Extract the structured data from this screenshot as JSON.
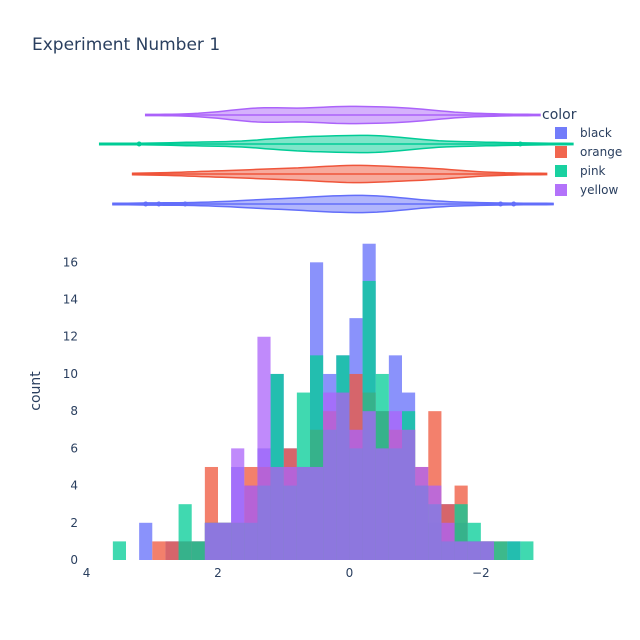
{
  "chart_data": {
    "type": "histogram",
    "title": "Experiment Number 1",
    "xlabel": "",
    "ylabel": "count",
    "x_reversed": true,
    "xlim": [
      4.1,
      -2.9
    ],
    "ylim": [
      0,
      17.2
    ],
    "x_ticks": [
      4,
      2,
      0,
      -2
    ],
    "x_tick_labels": [
      "4",
      "2",
      "0",
      "−2"
    ],
    "y_ticks": [
      0,
      2,
      4,
      6,
      8,
      10,
      12,
      14,
      16
    ],
    "bin_width": 0.2,
    "barmode": "overlay",
    "opacity": 0.75,
    "legend": {
      "title": "color",
      "position": "right"
    },
    "marginal": "violin",
    "series": [
      {
        "name": "black",
        "color": "#636efa",
        "bins": [
          [
            3.0,
            2
          ],
          [
            2.8,
            0
          ],
          [
            2.6,
            1
          ],
          [
            2.4,
            1
          ],
          [
            2.2,
            1
          ],
          [
            2.0,
            2
          ],
          [
            1.8,
            2
          ],
          [
            1.6,
            5
          ],
          [
            1.4,
            4
          ],
          [
            1.2,
            6
          ],
          [
            1.0,
            10
          ],
          [
            0.8,
            6
          ],
          [
            0.6,
            5
          ],
          [
            0.4,
            16
          ],
          [
            0.2,
            10
          ],
          [
            0.0,
            11
          ],
          [
            -0.2,
            13
          ],
          [
            -0.4,
            17
          ],
          [
            -0.6,
            8
          ],
          [
            -0.8,
            11
          ],
          [
            -1.0,
            9
          ],
          [
            -1.2,
            4
          ],
          [
            -1.4,
            2
          ],
          [
            -1.6,
            3
          ],
          [
            -1.8,
            2
          ],
          [
            -2.0,
            1
          ],
          [
            -2.2,
            1
          ],
          [
            -2.4,
            0
          ],
          [
            -2.6,
            1
          ]
        ],
        "violin_box": {
          "min": -3.1,
          "q1": -0.5,
          "median": 0.1,
          "q3": 0.7,
          "max": 3.6
        },
        "violin_outliers": [
          3.1,
          2.9,
          2.5,
          -2.3,
          -2.5
        ]
      },
      {
        "name": "orange",
        "color": "#ef553b",
        "bins": [
          [
            2.8,
            1
          ],
          [
            2.6,
            1
          ],
          [
            2.4,
            1
          ],
          [
            2.2,
            1
          ],
          [
            2.0,
            5
          ],
          [
            1.8,
            2
          ],
          [
            1.6,
            2
          ],
          [
            1.4,
            5
          ],
          [
            1.2,
            5
          ],
          [
            1.0,
            5
          ],
          [
            0.8,
            6
          ],
          [
            0.6,
            5
          ],
          [
            0.4,
            7
          ],
          [
            0.2,
            8
          ],
          [
            0.0,
            9
          ],
          [
            -0.2,
            10
          ],
          [
            -0.4,
            9
          ],
          [
            -0.6,
            8
          ],
          [
            -0.8,
            7
          ],
          [
            -1.0,
            7
          ],
          [
            -1.2,
            5
          ],
          [
            -1.4,
            8
          ],
          [
            -1.6,
            3
          ],
          [
            -1.8,
            4
          ],
          [
            -2.0,
            1
          ],
          [
            -2.2,
            1
          ],
          [
            -2.4,
            1
          ]
        ],
        "violin_box": {
          "min": -3.0,
          "q1": -0.6,
          "median": 0.0,
          "q3": 0.6,
          "max": 3.3
        },
        "violin_outliers": []
      },
      {
        "name": "pink",
        "color": "#00cc96",
        "bins": [
          [
            3.4,
            1
          ],
          [
            2.6,
            0
          ],
          [
            2.4,
            3
          ],
          [
            2.2,
            1
          ],
          [
            2.0,
            2
          ],
          [
            1.8,
            2
          ],
          [
            1.6,
            2
          ],
          [
            1.4,
            2
          ],
          [
            1.2,
            4
          ],
          [
            1.0,
            10
          ],
          [
            0.8,
            4
          ],
          [
            0.6,
            9
          ],
          [
            0.4,
            11
          ],
          [
            0.2,
            7
          ],
          [
            0.0,
            11
          ],
          [
            -0.2,
            6
          ],
          [
            -0.4,
            15
          ],
          [
            -0.6,
            10
          ],
          [
            -0.8,
            6
          ],
          [
            -1.0,
            8
          ],
          [
            -1.2,
            4
          ],
          [
            -1.4,
            3
          ],
          [
            -1.6,
            1
          ],
          [
            -1.8,
            3
          ],
          [
            -2.0,
            2
          ],
          [
            -2.2,
            1
          ],
          [
            -2.4,
            1
          ],
          [
            -2.6,
            1
          ],
          [
            -2.8,
            1
          ]
        ],
        "violin_box": {
          "min": -3.4,
          "q1": -0.6,
          "median": -0.1,
          "q3": 0.6,
          "max": 3.8
        },
        "violin_outliers": [
          3.2,
          -2.6
        ]
      },
      {
        "name": "yellow",
        "color": "#ab63fa",
        "bins": [
          [
            2.0,
            2
          ],
          [
            1.8,
            2
          ],
          [
            1.6,
            6
          ],
          [
            1.4,
            4
          ],
          [
            1.2,
            12
          ],
          [
            1.0,
            5
          ],
          [
            0.8,
            5
          ],
          [
            0.6,
            5
          ],
          [
            0.4,
            5
          ],
          [
            0.2,
            9
          ],
          [
            0.0,
            9
          ],
          [
            -0.2,
            7
          ],
          [
            -0.4,
            8
          ],
          [
            -0.6,
            6
          ],
          [
            -0.8,
            8
          ],
          [
            -1.0,
            7
          ],
          [
            -1.2,
            5
          ],
          [
            -1.4,
            4
          ],
          [
            -1.6,
            2
          ],
          [
            -1.8,
            1
          ],
          [
            -2.0,
            1
          ],
          [
            -2.2,
            1
          ]
        ],
        "violin_box": {
          "min": -2.9,
          "q1": -0.5,
          "median": 0.0,
          "q3": 0.6,
          "max": 3.1
        },
        "violin_outliers": []
      }
    ]
  }
}
